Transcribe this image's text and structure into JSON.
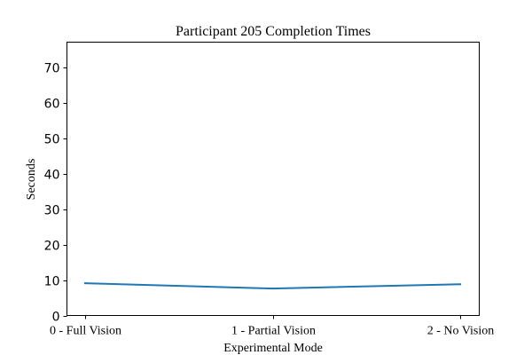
{
  "chart_data": {
    "type": "line",
    "title": "Participant 205 Completion Times",
    "xlabel": "Experimental Mode",
    "ylabel": "Seconds",
    "categories": [
      "0 - Full Vision",
      "1 - Partial Vision",
      "2 - No Vision"
    ],
    "series": [
      {
        "values": [
          9.1,
          7.6,
          8.8
        ],
        "color": "#1f77b4"
      }
    ],
    "ylim": [
      0,
      77
    ],
    "yticks": [
      0,
      10,
      20,
      30,
      40,
      50,
      60,
      70
    ],
    "grid": false,
    "legend": "none"
  }
}
